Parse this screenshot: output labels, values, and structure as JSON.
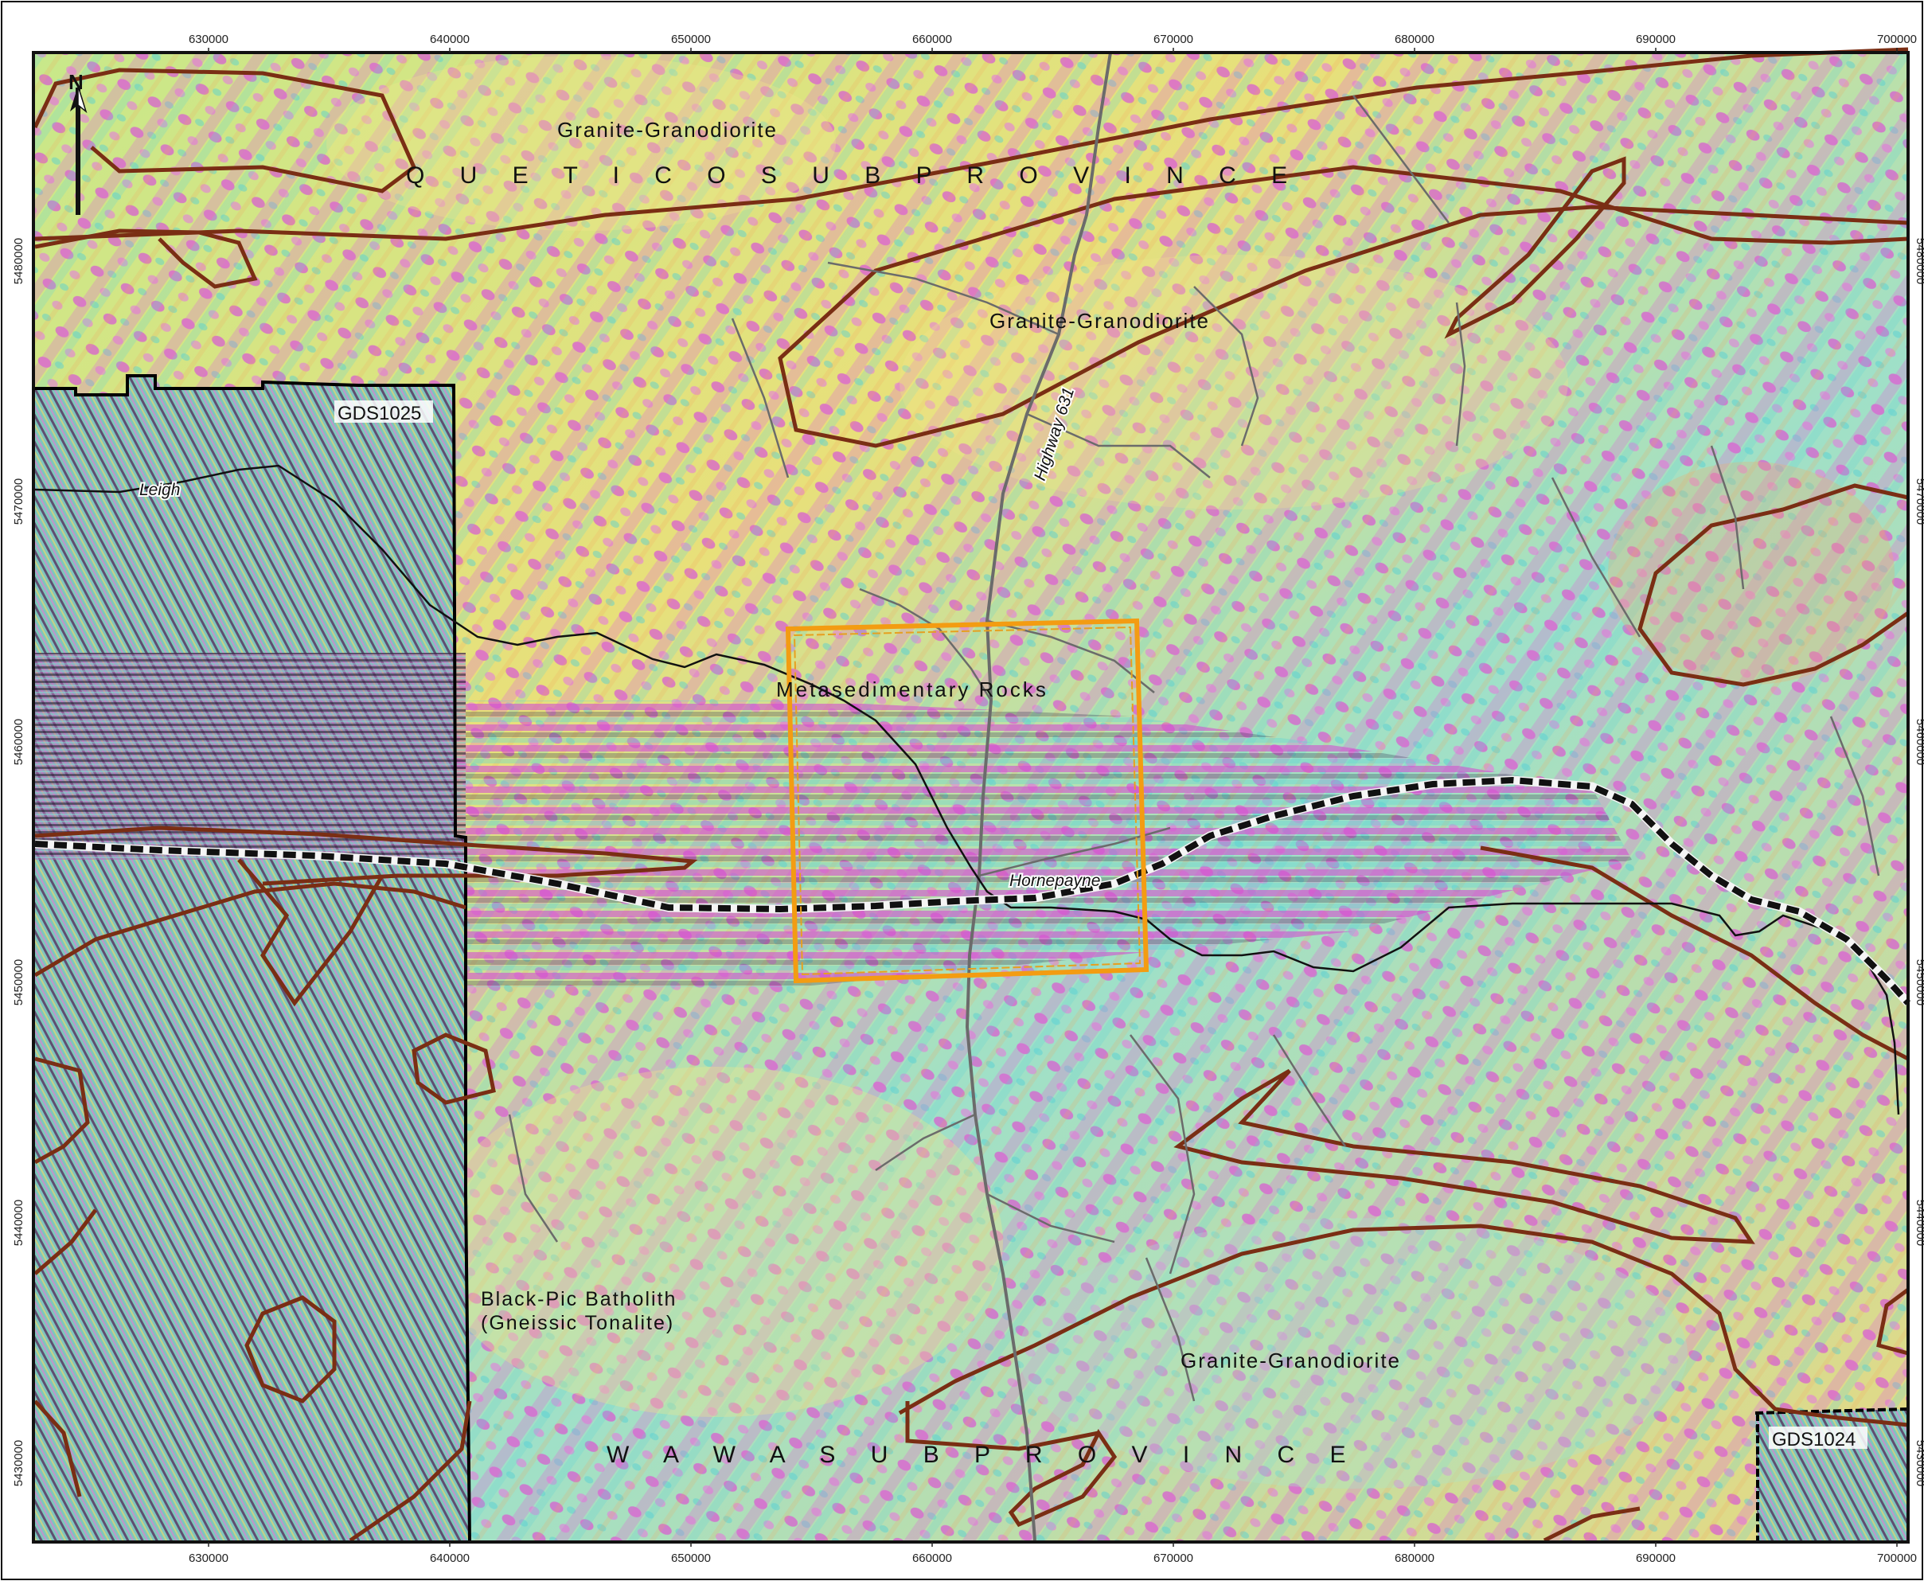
{
  "map": {
    "labels": {
      "quetico": "Q U E T I C O   S U B P R O V I N C E",
      "wawa": "W A W A   S U B P R O V I N C E",
      "granite_nw": "Granite-Granodiorite",
      "granite_center": "Granite-Granodiorite",
      "granite_south": "Granite-Granodiorite",
      "metased": "Metasedimentary Rocks",
      "blackpic_1": "Black-Pic Batholith",
      "blackpic_2": "(Gneissic Tonalite)",
      "gds1025": "GDS1025",
      "gds1024": "GDS1024",
      "highway": "Highway 631",
      "hornepayne": "Hornepayne",
      "leigh": "Leigh",
      "north": "N"
    },
    "x_ticks": [
      "630000",
      "640000",
      "650000",
      "660000",
      "670000",
      "680000",
      "690000",
      "700000"
    ],
    "y_ticks": [
      "5480000",
      "5470000",
      "5460000",
      "5450000",
      "5440000",
      "5430000"
    ],
    "colors": {
      "contact_lines": "#7a2e14",
      "study_box": "#f39c12",
      "railway": "#111111",
      "roads": "#6b6b6b"
    }
  }
}
